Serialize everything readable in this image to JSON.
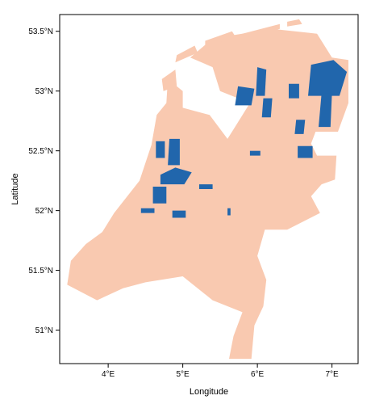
{
  "chart_data": {
    "type": "map",
    "xlabel": "Longitude",
    "ylabel": "Latitude",
    "x_ticks": [
      {
        "value": 4,
        "label": "4°E"
      },
      {
        "value": 5,
        "label": "5°E"
      },
      {
        "value": 6,
        "label": "6°E"
      },
      {
        "value": 7,
        "label": "7°E"
      }
    ],
    "y_ticks": [
      {
        "value": 53.5,
        "label": "53.5°N"
      },
      {
        "value": 53.0,
        "label": "53°N"
      },
      {
        "value": 52.5,
        "label": "52.5°N"
      },
      {
        "value": 52.0,
        "label": "52°N"
      },
      {
        "value": 51.5,
        "label": "51.5°N"
      },
      {
        "value": 51.0,
        "label": "51°N"
      }
    ],
    "xlim": [
      3.35,
      7.35
    ],
    "ylim": [
      50.72,
      53.64
    ],
    "grid": false,
    "legend": "none",
    "colors": {
      "land": "#f9c9b0",
      "highlight": "#2166ac",
      "frame": "#000000"
    },
    "land_polygon": [
      [
        5.62,
        50.76
      ],
      [
        5.92,
        50.76
      ],
      [
        5.96,
        51.04
      ],
      [
        6.08,
        51.2
      ],
      [
        6.12,
        51.42
      ],
      [
        6.0,
        51.62
      ],
      [
        6.1,
        51.84
      ],
      [
        6.4,
        51.84
      ],
      [
        6.84,
        51.98
      ],
      [
        6.72,
        52.12
      ],
      [
        6.86,
        52.22
      ],
      [
        7.04,
        52.26
      ],
      [
        7.06,
        52.46
      ],
      [
        6.8,
        52.46
      ],
      [
        6.72,
        52.56
      ],
      [
        6.78,
        52.66
      ],
      [
        7.08,
        52.66
      ],
      [
        7.22,
        52.9
      ],
      [
        7.22,
        53.26
      ],
      [
        7.0,
        53.28
      ],
      [
        6.8,
        53.48
      ],
      [
        6.2,
        53.52
      ],
      [
        5.4,
        53.44
      ],
      [
        5.1,
        53.28
      ],
      [
        5.4,
        53.2
      ],
      [
        5.5,
        53.0
      ],
      [
        5.9,
        52.9
      ],
      [
        5.7,
        52.7
      ],
      [
        5.6,
        52.6
      ],
      [
        5.36,
        52.8
      ],
      [
        5.0,
        52.86
      ],
      [
        5.0,
        53.0
      ],
      [
        4.8,
        53.1
      ],
      [
        4.78,
        52.9
      ],
      [
        4.65,
        52.8
      ],
      [
        4.58,
        52.55
      ],
      [
        4.42,
        52.25
      ],
      [
        4.08,
        51.98
      ],
      [
        3.92,
        51.82
      ],
      [
        3.7,
        51.72
      ],
      [
        3.5,
        51.58
      ],
      [
        3.45,
        51.38
      ],
      [
        3.85,
        51.25
      ],
      [
        4.2,
        51.35
      ],
      [
        4.5,
        51.4
      ],
      [
        5.0,
        51.45
      ],
      [
        5.4,
        51.25
      ],
      [
        5.8,
        51.15
      ],
      [
        5.68,
        50.95
      ]
    ],
    "island_polygons": [
      [
        [
          4.74,
          53.0
        ],
        [
          4.92,
          53.04
        ],
        [
          4.9,
          53.18
        ],
        [
          4.72,
          53.1
        ]
      ],
      [
        [
          4.9,
          53.24
        ],
        [
          5.2,
          53.32
        ],
        [
          5.16,
          53.38
        ],
        [
          4.92,
          53.3
        ]
      ],
      [
        [
          5.3,
          53.36
        ],
        [
          5.7,
          53.46
        ],
        [
          5.66,
          53.5
        ],
        [
          5.3,
          53.42
        ]
      ],
      [
        [
          5.8,
          53.44
        ],
        [
          6.3,
          53.52
        ],
        [
          6.3,
          53.56
        ],
        [
          5.8,
          53.48
        ]
      ],
      [
        [
          6.4,
          53.54
        ],
        [
          6.6,
          53.56
        ],
        [
          6.56,
          53.6
        ],
        [
          6.4,
          53.58
        ]
      ]
    ],
    "highlight_regions": [
      [
        [
          6.68,
          52.96
        ],
        [
          7.1,
          52.96
        ],
        [
          7.2,
          53.16
        ],
        [
          7.02,
          53.26
        ],
        [
          6.72,
          53.22
        ]
      ],
      [
        [
          6.82,
          52.7
        ],
        [
          6.98,
          52.7
        ],
        [
          7.0,
          52.98
        ],
        [
          6.86,
          52.98
        ]
      ],
      [
        [
          5.98,
          52.96
        ],
        [
          6.1,
          52.96
        ],
        [
          6.12,
          53.18
        ],
        [
          6.0,
          53.2
        ]
      ],
      [
        [
          5.7,
          52.88
        ],
        [
          5.92,
          52.88
        ],
        [
          5.96,
          53.02
        ],
        [
          5.74,
          53.04
        ]
      ],
      [
        [
          6.06,
          52.78
        ],
        [
          6.18,
          52.78
        ],
        [
          6.2,
          52.94
        ],
        [
          6.08,
          52.94
        ]
      ],
      [
        [
          6.42,
          52.94
        ],
        [
          6.56,
          52.94
        ],
        [
          6.56,
          53.06
        ],
        [
          6.42,
          53.06
        ]
      ],
      [
        [
          6.5,
          52.64
        ],
        [
          6.62,
          52.64
        ],
        [
          6.64,
          52.76
        ],
        [
          6.52,
          52.76
        ]
      ],
      [
        [
          6.54,
          52.44
        ],
        [
          6.74,
          52.44
        ],
        [
          6.74,
          52.54
        ],
        [
          6.54,
          52.54
        ]
      ],
      [
        [
          5.9,
          52.46
        ],
        [
          6.04,
          52.46
        ],
        [
          6.04,
          52.5
        ],
        [
          5.9,
          52.5
        ]
      ],
      [
        [
          4.7,
          52.22
        ],
        [
          5.02,
          52.22
        ],
        [
          5.12,
          52.32
        ],
        [
          4.9,
          52.36
        ],
        [
          4.7,
          52.3
        ]
      ],
      [
        [
          4.8,
          52.38
        ],
        [
          4.96,
          52.38
        ],
        [
          4.96,
          52.6
        ],
        [
          4.82,
          52.6
        ]
      ],
      [
        [
          4.64,
          52.44
        ],
        [
          4.76,
          52.44
        ],
        [
          4.76,
          52.58
        ],
        [
          4.64,
          52.58
        ]
      ],
      [
        [
          4.6,
          52.06
        ],
        [
          4.78,
          52.06
        ],
        [
          4.78,
          52.2
        ],
        [
          4.6,
          52.2
        ]
      ],
      [
        [
          4.86,
          51.94
        ],
        [
          5.04,
          51.94
        ],
        [
          5.04,
          52.0
        ],
        [
          4.86,
          52.0
        ]
      ],
      [
        [
          4.44,
          51.98
        ],
        [
          4.62,
          51.98
        ],
        [
          4.62,
          52.02
        ],
        [
          4.44,
          52.02
        ]
      ],
      [
        [
          5.22,
          52.18
        ],
        [
          5.4,
          52.18
        ],
        [
          5.4,
          52.22
        ],
        [
          5.22,
          52.22
        ]
      ],
      [
        [
          5.6,
          51.96
        ],
        [
          5.64,
          51.96
        ],
        [
          5.64,
          52.02
        ],
        [
          5.6,
          52.02
        ]
      ]
    ]
  }
}
